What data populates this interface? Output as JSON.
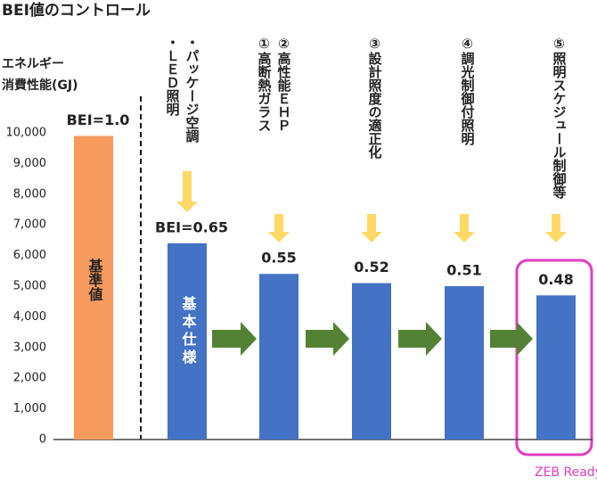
{
  "chart_data": {
    "type": "bar",
    "title": "BEI値のコントロール",
    "y_label": [
      "エネルギー",
      "消費性能(GJ)"
    ],
    "categories": [
      null,
      [
        "・パッケージ空調",
        "・ＬＥＤ照明"
      ],
      [
        "②高性能ＥＨＰ",
        "①高断熱ガラス"
      ],
      [
        "③設計照度の適正化"
      ],
      [
        "④調光制御付照明"
      ],
      [
        "⑤照明スケジュール制御等"
      ]
    ],
    "values": [
      9900,
      6400,
      5400,
      5100,
      5000,
      4700
    ],
    "bei_labels": [
      "BEI=1.0",
      "BEI=0.65",
      "0.55",
      "0.52",
      "0.51",
      "0.48"
    ],
    "colors": [
      "#f79a5e",
      "#4472c4",
      "#4472c4",
      "#4472c4",
      "#4472c4",
      "#4472c4"
    ],
    "base_label": "基準値",
    "standard_label": "基本仕様",
    "goal_label": "ZEB Ready達成",
    "ylim": [
      0,
      10000
    ],
    "yticks": [
      0,
      {
        "value": 1000,
        "label": "1,000"
      },
      {
        "value": 2000,
        "label": "2,000"
      },
      {
        "value": 3000,
        "label": "3,000"
      },
      {
        "value": 4000,
        "label": "4,000"
      },
      {
        "value": 5000,
        "label": "5,000"
      },
      {
        "value": 6000,
        "label": "6,000"
      },
      {
        "value": 7000,
        "label": "7,000"
      },
      {
        "value": 8000,
        "label": "8,000"
      },
      {
        "value": 9000,
        "label": "9,000"
      },
      {
        "value": 10000,
        "label": "10,000"
      }
    ],
    "grid": false
  }
}
